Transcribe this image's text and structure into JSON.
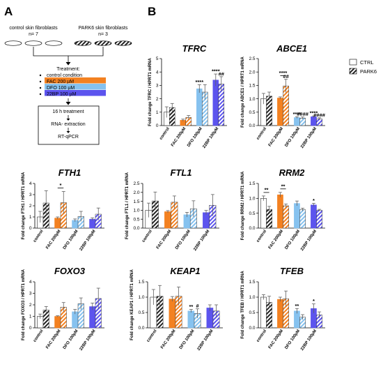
{
  "colors": {
    "control": "#ffffff",
    "fac": "#f38121",
    "dfo": "#86c2ef",
    "bp": "#5c54ee",
    "stroke": "#000000",
    "err": "#606060"
  },
  "legend": [
    {
      "label": "CTRL",
      "style": "plain"
    },
    {
      "label": "PARK6",
      "style": "hatched"
    }
  ],
  "panelA": {
    "letter": "A",
    "groups": [
      {
        "title": "control skin fibroblasts",
        "n": "n= 7",
        "style": "plain"
      },
      {
        "title": "PARK6 skin fibroblasts",
        "n": "n= 3",
        "style": "hatched"
      }
    ],
    "treatment_title": "Treatment:",
    "treatments": [
      {
        "label": "control condition",
        "color": "none"
      },
      {
        "label": "FAC 200 µM",
        "color": "fac"
      },
      {
        "label": "DFO 100 µM",
        "color": "dfo"
      },
      {
        "label": "22BP 100 µM",
        "color": "bp"
      }
    ],
    "steps": [
      "16 h treatment",
      "RNA- extraction",
      "RT-qPCR"
    ]
  },
  "panelB": {
    "letter": "B"
  },
  "chart_data": [
    {
      "type": "bar",
      "title": "TFRC",
      "ylabel": "Fold change TFRC / HPRT1 mRNA",
      "ylim": [
        0,
        5
      ],
      "yticks": [
        0,
        1,
        2,
        3,
        4,
        5
      ],
      "categories": [
        "control",
        "FAC 200µM",
        "DFO 100µM",
        "22BP 100µM"
      ],
      "series": [
        {
          "name": "CTRL",
          "values": [
            1.0,
            0.4,
            2.75,
            3.4
          ],
          "errors": [
            0.4,
            0.08,
            0.3,
            0.45
          ]
        },
        {
          "name": "PARK6",
          "values": [
            1.35,
            0.6,
            2.5,
            3.1
          ],
          "errors": [
            0.3,
            0.15,
            0.55,
            0.55
          ]
        }
      ],
      "annotations": [
        {
          "cat": 2,
          "series": 0,
          "text": "****"
        },
        {
          "cat": 3,
          "series": 0,
          "text": "****"
        },
        {
          "cat": 3,
          "series": 1,
          "text": "##"
        }
      ],
      "brackets": []
    },
    {
      "type": "bar",
      "title": "ABCE1",
      "ylabel": "Fold change ABCE1 / HPRT1 mRNA",
      "ylim": [
        0,
        2.5
      ],
      "yticks": [
        0,
        0.5,
        1.0,
        1.5,
        2.0,
        2.5
      ],
      "categories": [
        "control",
        "FAC 200µM",
        "DFO 100µM",
        "22BP 100µM"
      ],
      "series": [
        {
          "name": "CTRL",
          "values": [
            1.0,
            1.03,
            0.3,
            0.33
          ],
          "errors": [
            0.2,
            0.04,
            0.03,
            0.03
          ]
        },
        {
          "name": "PARK6",
          "values": [
            1.1,
            1.48,
            0.28,
            0.25
          ],
          "errors": [
            0.15,
            0.25,
            0.04,
            0.04
          ]
        }
      ],
      "annotations": [
        {
          "cat": 1,
          "series": 1,
          "text": "##"
        },
        {
          "cat": 2,
          "series": 0,
          "text": "****"
        },
        {
          "cat": 2,
          "series": 1,
          "text": "####"
        },
        {
          "cat": 3,
          "series": 0,
          "text": "****"
        },
        {
          "cat": 3,
          "series": 1,
          "text": "####"
        }
      ],
      "brackets": [
        {
          "cat": 1,
          "text": "****"
        }
      ]
    },
    {
      "type": "bar",
      "title": "FTH1",
      "ylabel": "Fold change FTH1 / HPRT1 mRNA",
      "ylim": [
        0,
        4
      ],
      "yticks": [
        0,
        1,
        2,
        3,
        4
      ],
      "categories": [
        "control",
        "FAC 200µM",
        "DFO 100µM",
        "22BP 100µM"
      ],
      "series": [
        {
          "name": "CTRL",
          "values": [
            1.0,
            0.9,
            0.7,
            0.8
          ],
          "errors": [
            0.5,
            0.1,
            0.12,
            0.12
          ]
        },
        {
          "name": "PARK6",
          "values": [
            2.25,
            2.28,
            1.05,
            1.25
          ],
          "errors": [
            1.1,
            1.0,
            0.45,
            0.55
          ]
        }
      ],
      "annotations": [],
      "brackets": [
        {
          "cat": 1,
          "text": "*"
        }
      ]
    },
    {
      "type": "bar",
      "title": "FTL1",
      "ylabel": "Fold change FTL1 / HPRT1 mRNA",
      "ylim": [
        0,
        2.5
      ],
      "yticks": [
        0,
        0.5,
        1.0,
        1.5,
        2.0,
        2.5
      ],
      "categories": [
        "control",
        "FAC 200µM",
        "DFO 100µM",
        "22BP 100µM"
      ],
      "series": [
        {
          "name": "CTRL",
          "values": [
            1.0,
            0.92,
            0.75,
            0.87
          ],
          "errors": [
            0.4,
            0.06,
            0.13,
            0.12
          ]
        },
        {
          "name": "PARK6",
          "values": [
            1.52,
            1.45,
            1.08,
            1.28
          ],
          "errors": [
            0.5,
            0.35,
            0.45,
            0.6
          ]
        }
      ],
      "annotations": [],
      "brackets": []
    },
    {
      "type": "bar",
      "title": "RRM2",
      "ylabel": "Fold change RRM2 / HPRT1 mRNA",
      "ylim": [
        0,
        1.5
      ],
      "yticks": [
        0,
        0.5,
        1.0,
        1.5
      ],
      "categories": [
        "control",
        "FAC 200µM",
        "DFO 100µM",
        "22BP 100µM"
      ],
      "series": [
        {
          "name": "CTRL",
          "values": [
            1.0,
            1.12,
            0.83,
            0.78
          ],
          "errors": [
            0.08,
            0.08,
            0.08,
            0.05
          ]
        },
        {
          "name": "PARK6",
          "values": [
            0.63,
            0.75,
            0.62,
            0.6
          ],
          "errors": [
            0.1,
            0.06,
            0.05,
            0.03
          ]
        }
      ],
      "annotations": [
        {
          "cat": 3,
          "series": 0,
          "text": "*"
        }
      ],
      "brackets": [
        {
          "cat": 0,
          "text": "**"
        },
        {
          "cat": 1,
          "text": "**"
        }
      ]
    },
    {
      "type": "bar",
      "title": "FOXO3",
      "ylabel": "Fold change FOXO3 / HPRT1 mRNA",
      "ylim": [
        0,
        4
      ],
      "yticks": [
        0,
        1,
        2,
        3,
        4
      ],
      "categories": [
        "control",
        "FAC 200µM",
        "DFO 100µM",
        "22BP 100µM"
      ],
      "series": [
        {
          "name": "CTRL",
          "values": [
            1.0,
            1.0,
            1.4,
            1.85
          ],
          "errors": [
            0.2,
            0.05,
            0.2,
            0.3
          ]
        },
        {
          "name": "PARK6",
          "values": [
            1.55,
            1.8,
            2.1,
            2.55
          ],
          "errors": [
            0.3,
            0.4,
            0.5,
            0.9
          ]
        }
      ],
      "annotations": [],
      "brackets": []
    },
    {
      "type": "bar",
      "title": "KEAP1",
      "ylabel": "Fold change KEAP1 / HPRT1 mRNA",
      "ylim": [
        0,
        1.5
      ],
      "yticks": [
        0,
        0.5,
        1.0,
        1.5
      ],
      "categories": [
        "control",
        "FAC 200µM",
        "DFO 100µM",
        "22BP 100µM"
      ],
      "series": [
        {
          "name": "CTRL",
          "values": [
            1.0,
            0.94,
            0.55,
            0.65
          ],
          "errors": [
            0.25,
            0.08,
            0.05,
            0.1
          ]
        },
        {
          "name": "PARK6",
          "values": [
            1.03,
            1.03,
            0.47,
            0.55
          ],
          "errors": [
            0.35,
            0.3,
            0.15,
            0.2
          ]
        }
      ],
      "annotations": [
        {
          "cat": 2,
          "series": 0,
          "text": "**"
        },
        {
          "cat": 2,
          "series": 1,
          "text": "#"
        }
      ],
      "brackets": []
    },
    {
      "type": "bar",
      "title": "TFEB",
      "ylabel": "Fold change TFEB / HPRT1 mRNA",
      "ylim": [
        0,
        1.5
      ],
      "yticks": [
        0,
        0.5,
        1.0,
        1.5
      ],
      "categories": [
        "control",
        "FAC 200µM",
        "DFO 100µM",
        "22BP 100µM"
      ],
      "series": [
        {
          "name": "CTRL",
          "values": [
            1.0,
            0.93,
            0.55,
            0.63
          ],
          "errors": [
            0.08,
            0.07,
            0.08,
            0.15
          ]
        },
        {
          "name": "PARK6",
          "values": [
            0.83,
            0.95,
            0.35,
            0.42
          ],
          "errors": [
            0.2,
            0.25,
            0.08,
            0.1
          ]
        }
      ],
      "annotations": [
        {
          "cat": 2,
          "series": 0,
          "text": "**"
        },
        {
          "cat": 3,
          "series": 0,
          "text": "*"
        }
      ],
      "brackets": []
    }
  ]
}
